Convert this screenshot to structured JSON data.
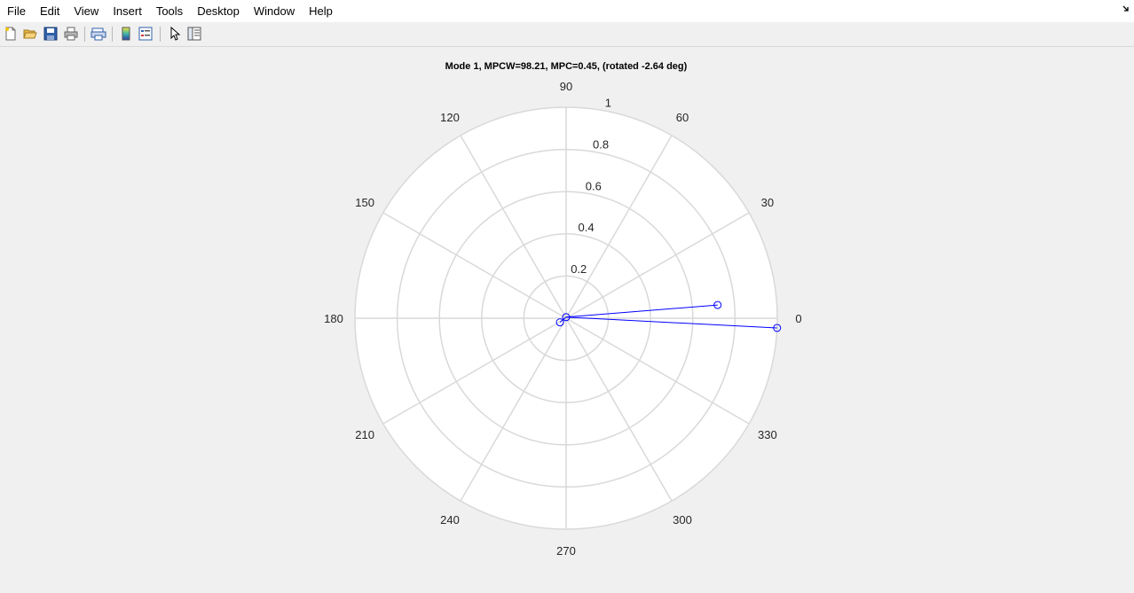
{
  "menu": [
    "File",
    "Edit",
    "View",
    "Insert",
    "Tools",
    "Desktop",
    "Window",
    "Help"
  ],
  "dock_icon": "dock-arrow-icon",
  "toolbar": {
    "icons": [
      "new-figure-icon",
      "open-icon",
      "save-icon",
      "print-icon",
      "print-preview-icon",
      "colorbar-icon",
      "legend-icon",
      "edit-plot-pointer-icon",
      "property-inspector-icon"
    ]
  },
  "colors": {
    "background": "#f0f0f0",
    "plot_area": "#ffffff",
    "grid": "#d9d9d9",
    "series": "#0000ff"
  },
  "chart_data": {
    "type": "polar",
    "title": "Mode 1, MPCW=98.21, MPC=0.45, (rotated -2.64 deg)",
    "rlim": [
      0,
      1
    ],
    "r_ticks": [
      "0.2",
      "0.4",
      "0.6",
      "0.8",
      "1"
    ],
    "theta_ticks": [
      "0",
      "30",
      "60",
      "90",
      "120",
      "150",
      "180",
      "210",
      "240",
      "270",
      "300",
      "330"
    ],
    "theta_unit": "deg",
    "grid": true,
    "series": [
      {
        "marker": "circle",
        "color": "#0000ff",
        "points": [
          {
            "r": 0.72,
            "theta_deg": 5.0
          },
          {
            "r": 1.0,
            "theta_deg": -2.64
          },
          {
            "r": 0.035,
            "theta_deg": 214
          },
          {
            "r": 0.005,
            "theta_deg": 90
          }
        ],
        "segments": [
          [
            2,
            3
          ],
          [
            3,
            0
          ],
          [
            3,
            1
          ]
        ]
      }
    ]
  }
}
